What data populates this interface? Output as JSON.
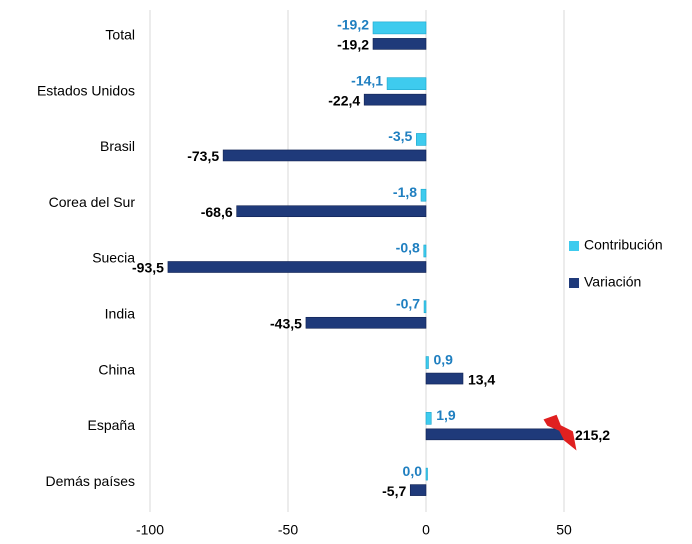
{
  "chart_data": {
    "type": "hbar",
    "categories": [
      "Total",
      "Estados Unidos",
      "Brasil",
      "Corea  del Sur",
      "Suecia",
      "India",
      "China",
      "España",
      "Demás países"
    ],
    "series": [
      {
        "name": "Contribución",
        "color": "#3ecbee",
        "values": [
          -19.2,
          -14.1,
          -3.5,
          -1.8,
          -0.8,
          -0.7,
          0.9,
          1.9,
          0.0
        ],
        "value_labels": [
          "-19,2",
          "-14,1",
          "-3,5",
          "-1,8",
          "-0,8",
          "-0,7",
          "0,9",
          "1,9",
          "0,0"
        ]
      },
      {
        "name": "Variación",
        "color": "#1f3a7a",
        "values": [
          -19.2,
          -22.4,
          -73.5,
          -68.6,
          -93.5,
          -43.5,
          13.4,
          215.2,
          -5.7
        ],
        "value_labels": [
          "-19,2",
          "-22,4",
          "-73,5",
          "-68,6",
          "-93,5",
          "-43,5",
          "13,4",
          "215,2",
          "-5,7"
        ]
      }
    ],
    "xlim": [
      -100,
      50
    ],
    "xticks": [
      -100,
      -50,
      0,
      50
    ],
    "grid": true,
    "legend": "right"
  }
}
